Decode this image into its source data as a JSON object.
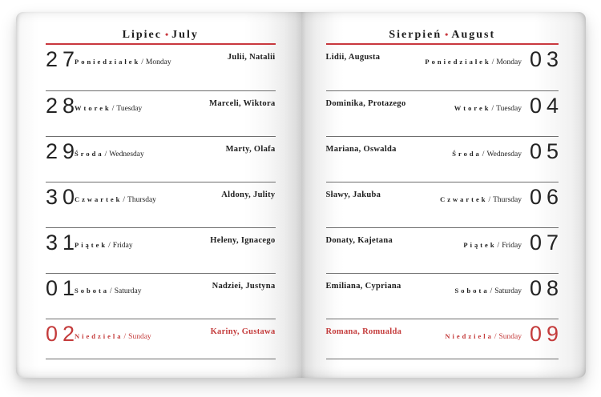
{
  "separator": "•",
  "slash": "/",
  "colors": {
    "accent_red": "#c9383e",
    "red_text": "#c43b3b",
    "row_line": "#6e6e6e"
  },
  "left_page": {
    "month_pl": "Lipiec",
    "month_en": "July",
    "rows": [
      {
        "day": "27",
        "dow_pl": "Poniedziałek",
        "dow_en": "Monday",
        "names": "Julii, Natalii",
        "sunday": false
      },
      {
        "day": "28",
        "dow_pl": "Wtorek",
        "dow_en": "Tuesday",
        "names": "Marceli, Wiktora",
        "sunday": false
      },
      {
        "day": "29",
        "dow_pl": "Środa",
        "dow_en": "Wednesday",
        "names": "Marty, Olafa",
        "sunday": false
      },
      {
        "day": "30",
        "dow_pl": "Czwartek",
        "dow_en": "Thursday",
        "names": "Aldony, Julity",
        "sunday": false
      },
      {
        "day": "31",
        "dow_pl": "Piątek",
        "dow_en": "Friday",
        "names": "Heleny, Ignacego",
        "sunday": false
      },
      {
        "day": "01",
        "dow_pl": "Sobota",
        "dow_en": "Saturday",
        "names": "Nadziei, Justyna",
        "sunday": false
      },
      {
        "day": "02",
        "dow_pl": "Niedziela",
        "dow_en": "Sunday",
        "names": "Kariny, Gustawa",
        "sunday": true
      }
    ]
  },
  "right_page": {
    "month_pl": "Sierpień",
    "month_en": "August",
    "rows": [
      {
        "day": "03",
        "dow_pl": "Poniedziałek",
        "dow_en": "Monday",
        "names": "Lidii, Augusta",
        "sunday": false
      },
      {
        "day": "04",
        "dow_pl": "Wtorek",
        "dow_en": "Tuesday",
        "names": "Dominika, Protazego",
        "sunday": false
      },
      {
        "day": "05",
        "dow_pl": "Środa",
        "dow_en": "Wednesday",
        "names": "Mariana, Oswalda",
        "sunday": false
      },
      {
        "day": "06",
        "dow_pl": "Czwartek",
        "dow_en": "Thursday",
        "names": "Sławy, Jakuba",
        "sunday": false
      },
      {
        "day": "07",
        "dow_pl": "Piątek",
        "dow_en": "Friday",
        "names": "Donaty, Kajetana",
        "sunday": false
      },
      {
        "day": "08",
        "dow_pl": "Sobota",
        "dow_en": "Saturday",
        "names": "Emiliana, Cypriana",
        "sunday": false
      },
      {
        "day": "09",
        "dow_pl": "Niedziela",
        "dow_en": "Sunday",
        "names": "Romana, Romualda",
        "sunday": true
      }
    ]
  }
}
